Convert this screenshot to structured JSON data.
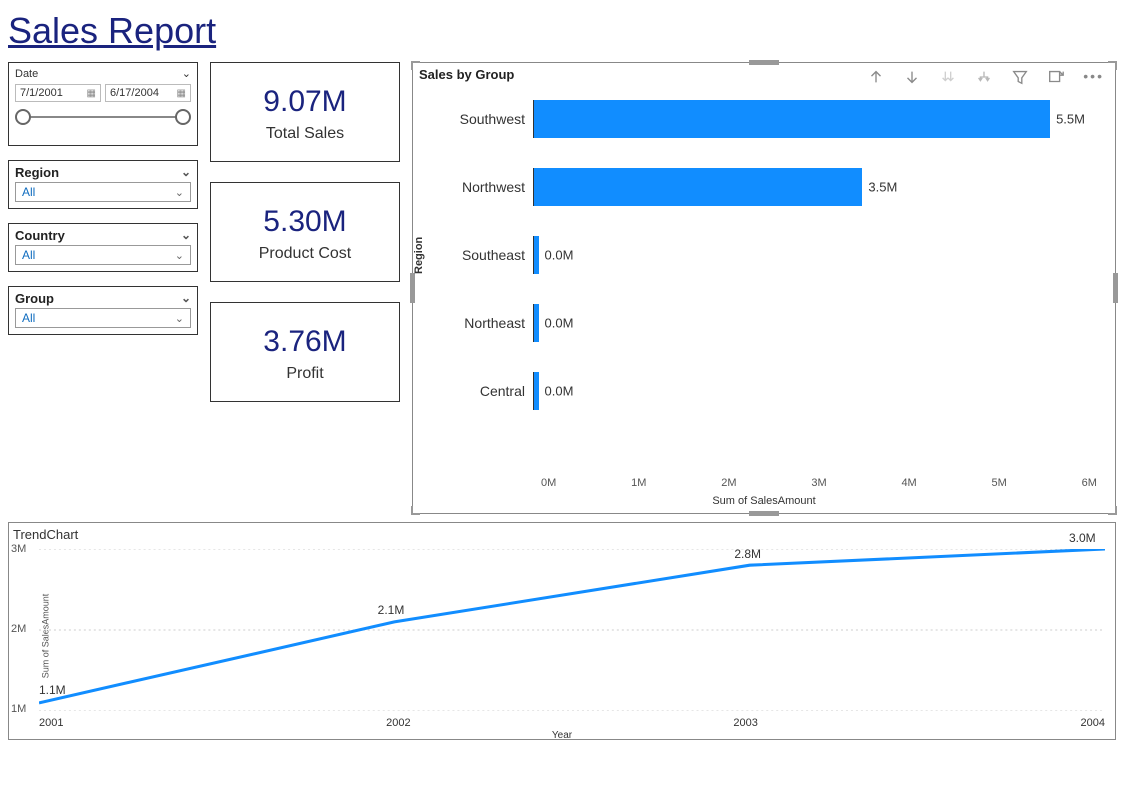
{
  "title": "Sales Report",
  "date_slicer": {
    "label": "Date",
    "start": "7/1/2001",
    "end": "6/17/2004"
  },
  "slicers": {
    "region": {
      "label": "Region",
      "value": "All"
    },
    "country": {
      "label": "Country",
      "value": "All"
    },
    "group": {
      "label": "Group",
      "value": "All"
    }
  },
  "kpis": {
    "total_sales": {
      "value": "9.07M",
      "label": "Total Sales"
    },
    "product_cost": {
      "value": "5.30M",
      "label": "Product Cost"
    },
    "profit": {
      "value": "3.76M",
      "label": "Profit"
    }
  },
  "bar_chart": {
    "title": "Sales by Group",
    "y_axis_label": "Region",
    "x_axis_label": "Sum of SalesAmount",
    "type": "horizontal-bar",
    "xlim": [
      0,
      6
    ],
    "x_ticks": [
      "0M",
      "1M",
      "2M",
      "3M",
      "4M",
      "5M",
      "6M"
    ],
    "bar_color": "#118dff",
    "categories": [
      "Southwest",
      "Northwest",
      "Southeast",
      "Northeast",
      "Central"
    ],
    "values": [
      5.5,
      3.5,
      0.0,
      0.0,
      0.0
    ],
    "labels": [
      "5.5M",
      "3.5M",
      "0.0M",
      "0.0M",
      "0.0M"
    ]
  },
  "trend_chart": {
    "title": "TrendChart",
    "type": "line",
    "line_color": "#118dff",
    "grid_color": "#cccccc",
    "x_axis_label": "Year",
    "y_axis_label": "Sum of SalesAmount",
    "ylim": [
      1,
      3
    ],
    "y_ticks": [
      "1M",
      "2M",
      "3M"
    ],
    "x_ticks": [
      "2001",
      "2002",
      "2003",
      "2004"
    ],
    "points_x": [
      2001,
      2002,
      2003,
      2004
    ],
    "points_y": [
      1.1,
      2.1,
      2.8,
      3.0
    ],
    "labels": [
      "1.1M",
      "2.1M",
      "2.8M",
      "3.0M"
    ]
  },
  "colors": {
    "kpi_value": "#1a237e",
    "border": "#333333",
    "selection_handle": "#999999"
  }
}
